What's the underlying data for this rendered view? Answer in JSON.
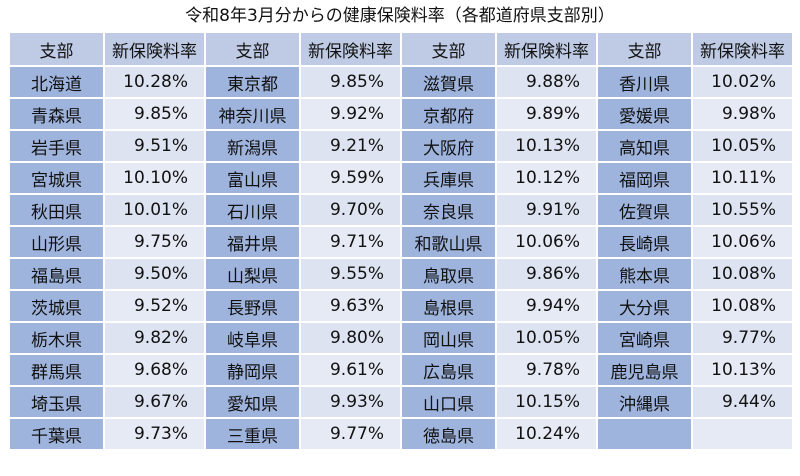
{
  "title": "令和8年3月分からの健康保険料率（各都道府県支部別）",
  "headers": {
    "branch": "支部",
    "rate": "新保険料率"
  },
  "rows": [
    [
      [
        "北海道",
        "10.28%"
      ],
      [
        "東京都",
        "9.85%"
      ],
      [
        "滋賀県",
        "9.88%"
      ],
      [
        "香川県",
        "10.02%"
      ]
    ],
    [
      [
        "青森県",
        "9.85%"
      ],
      [
        "神奈川県",
        "9.92%"
      ],
      [
        "京都府",
        "9.89%"
      ],
      [
        "愛媛県",
        "9.98%"
      ]
    ],
    [
      [
        "岩手県",
        "9.51%"
      ],
      [
        "新潟県",
        "9.21%"
      ],
      [
        "大阪府",
        "10.13%"
      ],
      [
        "高知県",
        "10.05%"
      ]
    ],
    [
      [
        "宮城県",
        "10.10%"
      ],
      [
        "富山県",
        "9.59%"
      ],
      [
        "兵庫県",
        "10.12%"
      ],
      [
        "福岡県",
        "10.11%"
      ]
    ],
    [
      [
        "秋田県",
        "10.01%"
      ],
      [
        "石川県",
        "9.70%"
      ],
      [
        "奈良県",
        "9.91%"
      ],
      [
        "佐賀県",
        "10.55%"
      ]
    ],
    [
      [
        "山形県",
        "9.75%"
      ],
      [
        "福井県",
        "9.71%"
      ],
      [
        "和歌山県",
        "10.06%"
      ],
      [
        "長崎県",
        "10.06%"
      ]
    ],
    [
      [
        "福島県",
        "9.50%"
      ],
      [
        "山梨県",
        "9.55%"
      ],
      [
        "鳥取県",
        "9.86%"
      ],
      [
        "熊本県",
        "10.08%"
      ]
    ],
    [
      [
        "茨城県",
        "9.52%"
      ],
      [
        "長野県",
        "9.63%"
      ],
      [
        "島根県",
        "9.94%"
      ],
      [
        "大分県",
        "10.08%"
      ]
    ],
    [
      [
        "栃木県",
        "9.82%"
      ],
      [
        "岐阜県",
        "9.80%"
      ],
      [
        "岡山県",
        "10.05%"
      ],
      [
        "宮崎県",
        "9.77%"
      ]
    ],
    [
      [
        "群馬県",
        "9.68%"
      ],
      [
        "静岡県",
        "9.61%"
      ],
      [
        "広島県",
        "9.78%"
      ],
      [
        "鹿児島県",
        "10.13%"
      ]
    ],
    [
      [
        "埼玉県",
        "9.67%"
      ],
      [
        "愛知県",
        "9.93%"
      ],
      [
        "山口県",
        "10.15%"
      ],
      [
        "沖縄県",
        "9.44%"
      ]
    ],
    [
      [
        "千葉県",
        "9.73%"
      ],
      [
        "三重県",
        "9.77%"
      ],
      [
        "徳島県",
        "10.24%"
      ],
      [
        "",
        ""
      ]
    ]
  ]
}
